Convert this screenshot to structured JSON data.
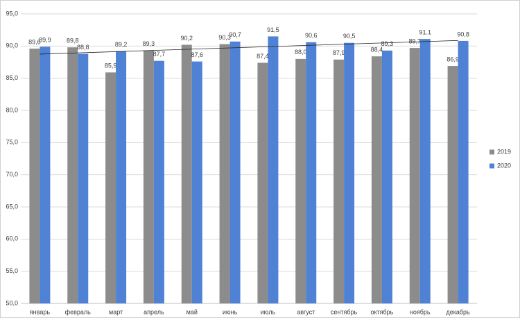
{
  "chart_data": {
    "type": "bar",
    "categories": [
      "январь",
      "февраль",
      "март",
      "апрель",
      "май",
      "июнь",
      "июль",
      "август",
      "сентябрь",
      "октябрь",
      "ноябрь",
      "декабрь"
    ],
    "series": [
      {
        "name": "2019",
        "color": "#8c8c8c",
        "values": [
          89.6,
          89.8,
          85.9,
          89.3,
          90.2,
          90.3,
          87.4,
          88.0,
          87.9,
          88.4,
          89.7,
          86.9
        ],
        "value_labels": [
          "89,6",
          "89,8",
          "85,9",
          "89,3",
          "90,2",
          "90,3",
          "87,4",
          "88,0",
          "87,9",
          "88,4",
          "89,7",
          "86,9"
        ]
      },
      {
        "name": "2020",
        "color": "#4f81d4",
        "trendline": true,
        "values": [
          89.9,
          88.8,
          89.2,
          87.7,
          87.6,
          90.7,
          91.5,
          90.6,
          90.5,
          89.3,
          91.1,
          90.8
        ],
        "value_labels": [
          "89,9",
          "88,8",
          "89,2",
          "87,7",
          "87,6",
          "90,7",
          "91,5",
          "90,6",
          "90,5",
          "89,3",
          "91.1",
          "90,8"
        ]
      }
    ],
    "ylim": [
      50,
      95
    ],
    "yticks": [
      {
        "value": 50,
        "label": "50,0"
      },
      {
        "value": 55,
        "label": "55,0"
      },
      {
        "value": 60,
        "label": "60,0"
      },
      {
        "value": 65,
        "label": "65,0"
      },
      {
        "value": 70,
        "label": "70,0"
      },
      {
        "value": 75,
        "label": "75,0"
      },
      {
        "value": 80,
        "label": "80,0"
      },
      {
        "value": 85,
        "label": "85,0"
      },
      {
        "value": 90,
        "label": "90,0"
      },
      {
        "value": 95,
        "label": "95,0"
      }
    ],
    "grid": true,
    "legend": "right"
  }
}
